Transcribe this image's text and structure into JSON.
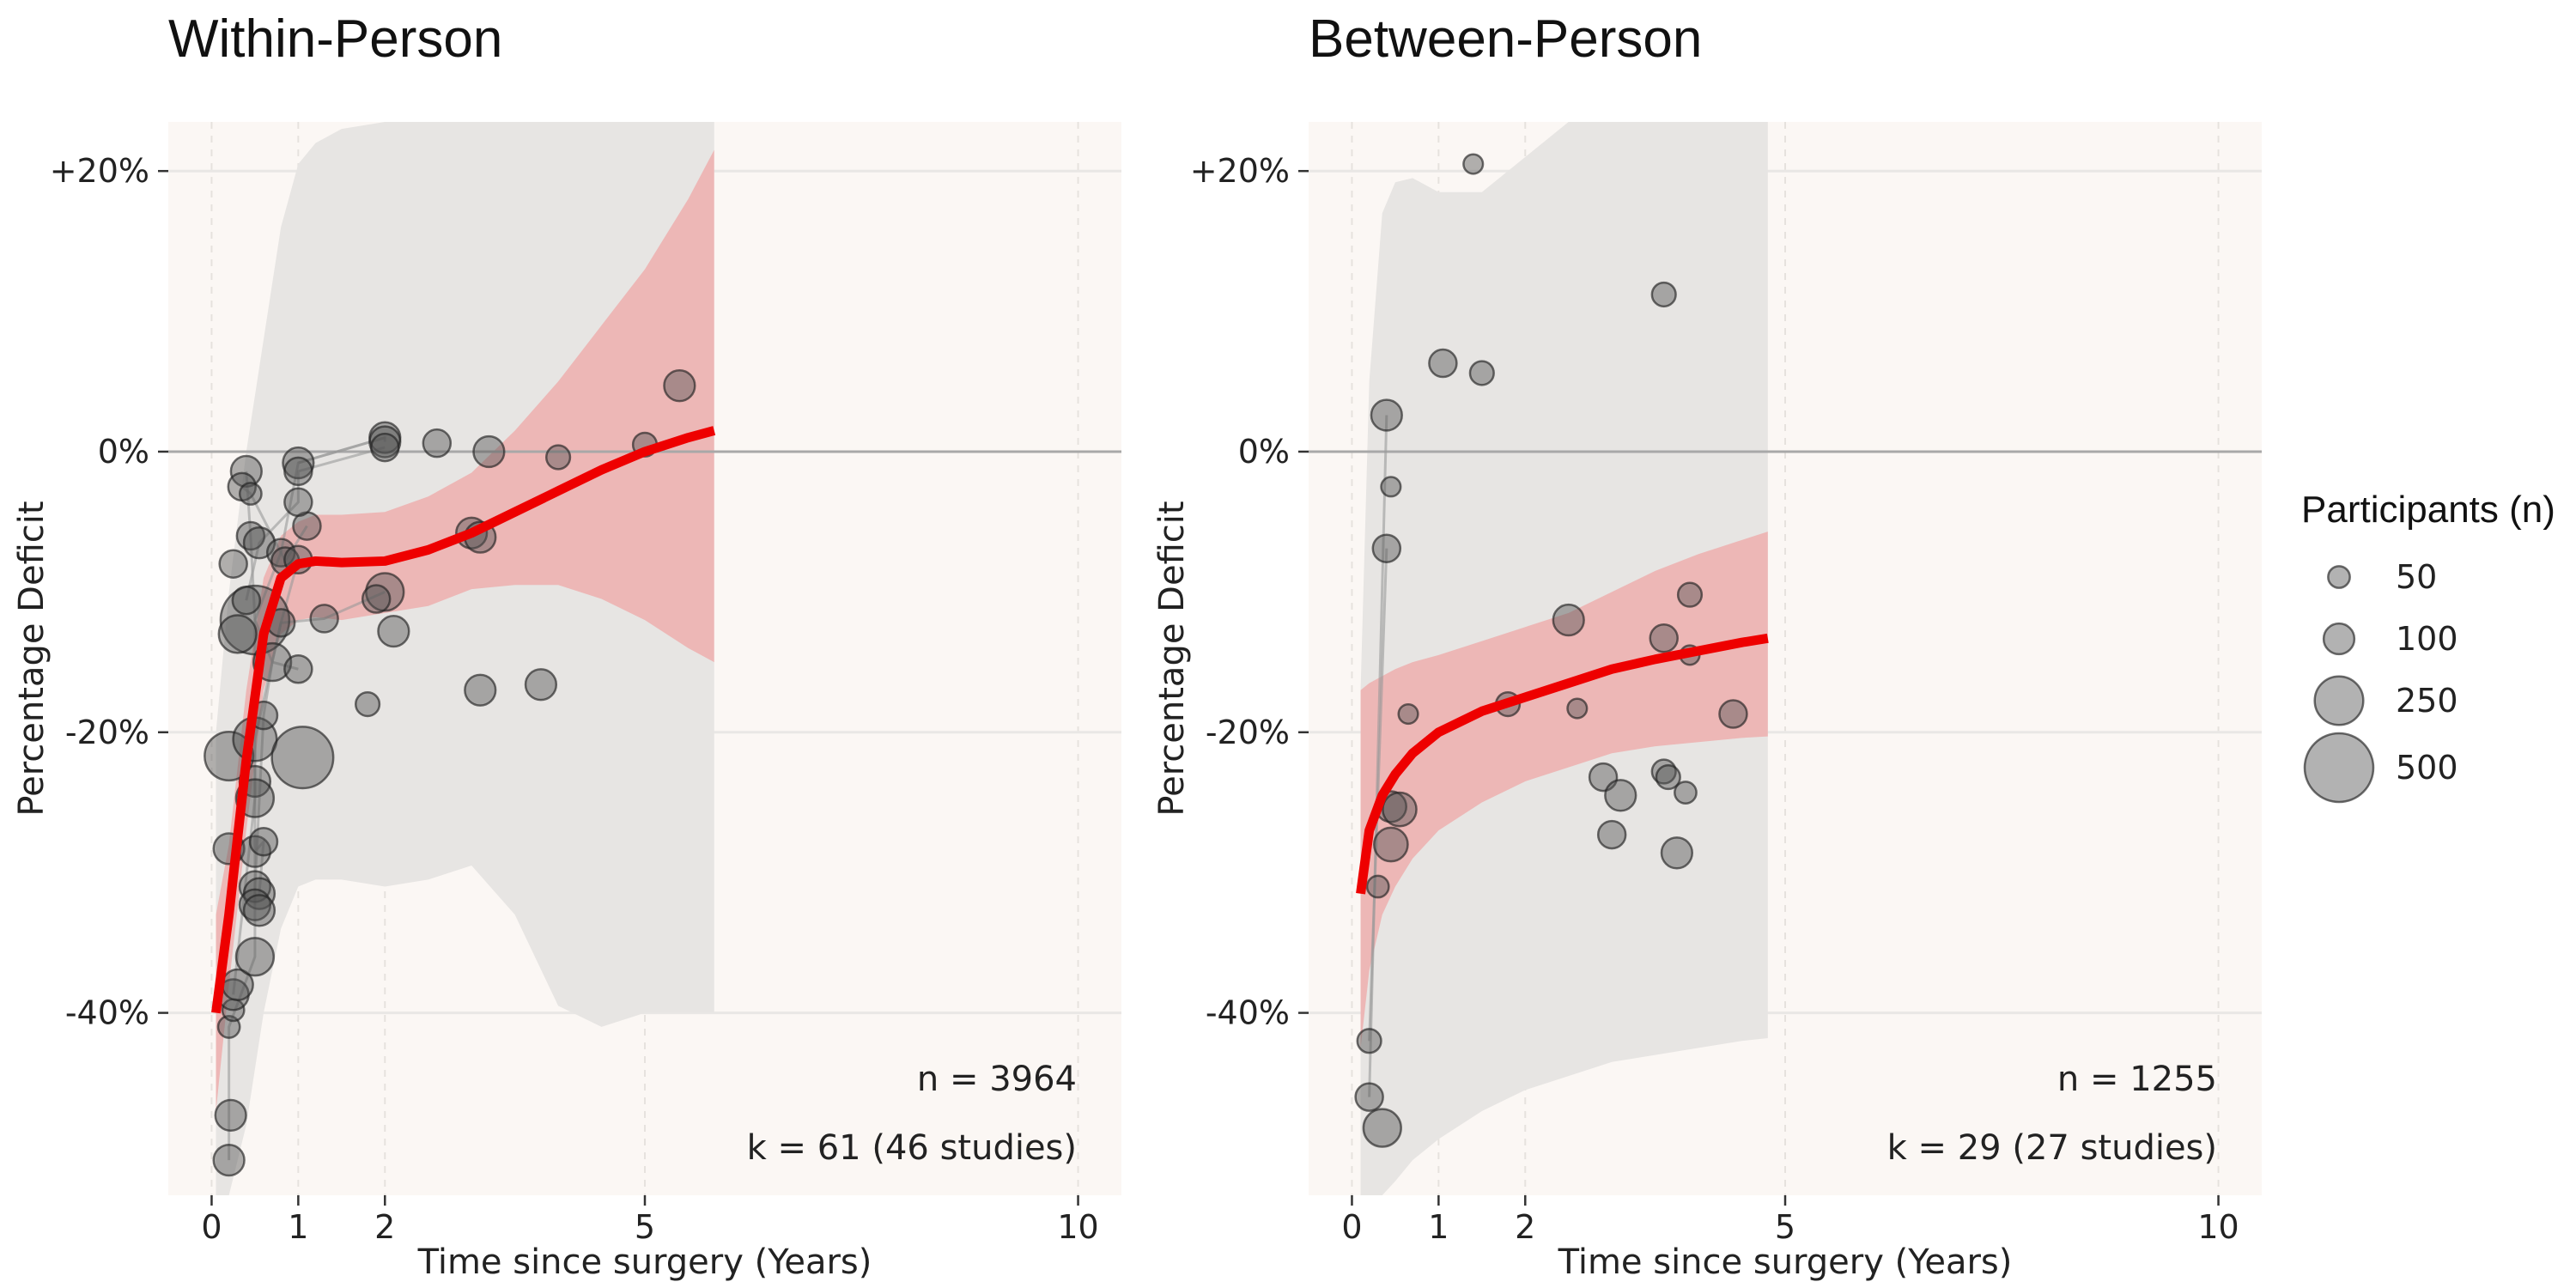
{
  "chart_data": [
    {
      "type": "scatter",
      "title": "Within-Person",
      "xlabel": "Time since surgery (Years)",
      "ylabel": "Percentage Deficit",
      "xlim": [
        -0.5,
        10.5
      ],
      "ylim": [
        -53,
        23.5
      ],
      "x_ticks": [
        0,
        1,
        2,
        5,
        10
      ],
      "y_ticks": [
        {
          "value": 20,
          "label": "+20%"
        },
        {
          "value": 0,
          "label": "0%"
        },
        {
          "value": -20,
          "label": "-20%"
        },
        {
          "value": -40,
          "label": "-40%"
        }
      ],
      "n_label": "n = 3964",
      "k_label": "k = 61 (46 studies)",
      "fit_line": {
        "x": [
          0.05,
          0.2,
          0.4,
          0.6,
          0.8,
          1.0,
          1.2,
          1.5,
          2.0,
          2.5,
          3.0,
          3.5,
          4.0,
          4.5,
          5.0,
          5.5,
          5.8
        ],
        "y": [
          -40,
          -33,
          -22,
          -13,
          -9,
          -8,
          -7.8,
          -7.9,
          -7.8,
          -7,
          -5.8,
          -4.3,
          -2.8,
          -1.3,
          0,
          1,
          1.5
        ]
      },
      "ci_band": {
        "x": [
          0.05,
          0.2,
          0.4,
          0.6,
          0.8,
          1.0,
          1.2,
          1.5,
          2.0,
          2.5,
          3.0,
          3.5,
          4.0,
          4.5,
          5.0,
          5.5,
          5.8
        ],
        "lower": [
          -47,
          -38,
          -27,
          -17,
          -13,
          -12,
          -11.8,
          -12,
          -11.5,
          -11,
          -9.8,
          -9.5,
          -9.5,
          -10.5,
          -12,
          -14,
          -15
        ],
        "upper": [
          -33,
          -28,
          -17,
          -9,
          -6,
          -5,
          -4.5,
          -4.5,
          -4.3,
          -3.2,
          -1.5,
          1.5,
          5,
          9,
          13,
          18,
          21.5
        ]
      },
      "pred_band": {
        "x": [
          0.05,
          0.2,
          0.4,
          0.6,
          0.8,
          1.0,
          1.2,
          1.5,
          2.0,
          2.5,
          3.0,
          3.5,
          4.0,
          4.5,
          5.0,
          5.5,
          5.8
        ],
        "lower": [
          -53,
          -53,
          -48,
          -40,
          -34,
          -31,
          -30.5,
          -30.5,
          -31,
          -30.5,
          -29.5,
          -33,
          -39.5,
          -41,
          -40,
          -40,
          -40
        ],
        "upper": [
          -20,
          -10,
          0,
          8,
          16,
          20.5,
          22,
          23,
          23.5,
          23.5,
          23.5,
          23.5,
          23.5,
          23.5,
          23.5,
          23.5,
          23.5
        ]
      },
      "points": [
        {
          "x": 0.2,
          "y": -50.5,
          "n": 100
        },
        {
          "x": 0.22,
          "y": -47.3,
          "n": 100
        },
        {
          "x": 0.2,
          "y": -41,
          "n": 50
        },
        {
          "x": 0.25,
          "y": -39.8,
          "n": 50
        },
        {
          "x": 0.25,
          "y": -38.7,
          "n": 100
        },
        {
          "x": 0.3,
          "y": -38,
          "n": 100
        },
        {
          "x": 0.5,
          "y": -36,
          "n": 150
        },
        {
          "x": 0.2,
          "y": -28.3,
          "n": 100
        },
        {
          "x": 0.5,
          "y": -28.5,
          "n": 100
        },
        {
          "x": 0.6,
          "y": -27.8,
          "n": 80
        },
        {
          "x": 0.5,
          "y": -31,
          "n": 100
        },
        {
          "x": 0.55,
          "y": -31.5,
          "n": 100
        },
        {
          "x": 0.5,
          "y": -32.3,
          "n": 100
        },
        {
          "x": 0.55,
          "y": -32.7,
          "n": 100
        },
        {
          "x": 0.2,
          "y": -21.7,
          "n": 250
        },
        {
          "x": 0.5,
          "y": -20.5,
          "n": 200
        },
        {
          "x": 0.5,
          "y": -23.5,
          "n": 100
        },
        {
          "x": 0.5,
          "y": -24.7,
          "n": 150
        },
        {
          "x": 0.6,
          "y": -18.8,
          "n": 80
        },
        {
          "x": 1.05,
          "y": -21.8,
          "n": 400
        },
        {
          "x": 0.5,
          "y": -12,
          "n": 500
        },
        {
          "x": 0.3,
          "y": -13,
          "n": 150
        },
        {
          "x": 0.4,
          "y": -10.6,
          "n": 80
        },
        {
          "x": 0.7,
          "y": -15,
          "n": 150
        },
        {
          "x": 0.8,
          "y": -12.2,
          "n": 80
        },
        {
          "x": 1.0,
          "y": -15.5,
          "n": 80
        },
        {
          "x": 1.3,
          "y": -11.9,
          "n": 80
        },
        {
          "x": 0.25,
          "y": -8,
          "n": 80
        },
        {
          "x": 0.45,
          "y": -6,
          "n": 80
        },
        {
          "x": 0.55,
          "y": -6.5,
          "n": 100
        },
        {
          "x": 0.8,
          "y": -7.2,
          "n": 80
        },
        {
          "x": 0.85,
          "y": -7.8,
          "n": 80
        },
        {
          "x": 1.0,
          "y": -7.7,
          "n": 80
        },
        {
          "x": 1.1,
          "y": -5.3,
          "n": 80
        },
        {
          "x": 0.4,
          "y": -1.4,
          "n": 100
        },
        {
          "x": 0.35,
          "y": -2.5,
          "n": 80
        },
        {
          "x": 0.45,
          "y": -3,
          "n": 50
        },
        {
          "x": 1.0,
          "y": -0.8,
          "n": 100
        },
        {
          "x": 1.0,
          "y": -1.4,
          "n": 80
        },
        {
          "x": 1.0,
          "y": -3.6,
          "n": 80
        },
        {
          "x": 2.0,
          "y": 1,
          "n": 100
        },
        {
          "x": 2.0,
          "y": 0.7,
          "n": 100
        },
        {
          "x": 2.0,
          "y": 0.3,
          "n": 80
        },
        {
          "x": 2.6,
          "y": 0.6,
          "n": 80
        },
        {
          "x": 3.2,
          "y": 0,
          "n": 100
        },
        {
          "x": 4.0,
          "y": -0.4,
          "n": 60
        },
        {
          "x": 5.0,
          "y": 0.5,
          "n": 60
        },
        {
          "x": 5.4,
          "y": 4.7,
          "n": 100
        },
        {
          "x": 3.0,
          "y": -5.8,
          "n": 100
        },
        {
          "x": 3.1,
          "y": -6.1,
          "n": 100
        },
        {
          "x": 2.0,
          "y": -10,
          "n": 150
        },
        {
          "x": 1.9,
          "y": -10.5,
          "n": 80
        },
        {
          "x": 2.1,
          "y": -12.8,
          "n": 100
        },
        {
          "x": 1.8,
          "y": -18,
          "n": 60
        },
        {
          "x": 3.1,
          "y": -17,
          "n": 100
        },
        {
          "x": 3.8,
          "y": -16.6,
          "n": 100
        }
      ],
      "connections": [
        [
          [
            0.2,
            -50.5
          ],
          [
            0.2,
            -41
          ],
          [
            0.5,
            -36
          ],
          [
            0.5,
            -31
          ],
          [
            0.6,
            -18.8
          ],
          [
            0.7,
            -15
          ],
          [
            0.8,
            -12.2
          ],
          [
            1.0,
            -7.7
          ]
        ],
        [
          [
            0.25,
            -38.7
          ],
          [
            0.5,
            -24.7
          ],
          [
            0.5,
            -20.5
          ],
          [
            0.8,
            -12.2
          ],
          [
            1.3,
            -11.9
          ],
          [
            2.0,
            -10
          ]
        ],
        [
          [
            0.5,
            -32.3
          ],
          [
            0.5,
            -12
          ],
          [
            0.8,
            -7.2
          ],
          [
            1.0,
            -0.8
          ],
          [
            2.0,
            1
          ],
          [
            2.0,
            0.7
          ]
        ],
        [
          [
            0.4,
            -10.6
          ],
          [
            0.55,
            -6.5
          ],
          [
            1.0,
            -3.6
          ],
          [
            1.0,
            -1.4
          ],
          [
            2.0,
            0.3
          ]
        ],
        [
          [
            0.4,
            -1.4
          ],
          [
            0.45,
            -6
          ],
          [
            0.5,
            -12
          ],
          [
            0.7,
            -15
          ],
          [
            1.0,
            -15.5
          ]
        ],
        [
          [
            0.35,
            -2.5
          ],
          [
            0.45,
            -3
          ],
          [
            0.85,
            -7.8
          ],
          [
            1.1,
            -5.3
          ]
        ],
        [
          [
            0.5,
            -28.5
          ],
          [
            0.6,
            -27.8
          ],
          [
            0.55,
            -31.5
          ]
        ],
        [
          [
            1.0,
            -0.8
          ],
          [
            2.0,
            1
          ]
        ]
      ]
    },
    {
      "type": "scatter",
      "title": "Between-Person",
      "xlabel": "Time since surgery (Years)",
      "ylabel": "Percentage Deficit",
      "xlim": [
        -0.5,
        10.5
      ],
      "ylim": [
        -53,
        23.5
      ],
      "x_ticks": [
        0,
        1,
        2,
        5,
        10
      ],
      "y_ticks": [
        {
          "value": 20,
          "label": "+20%"
        },
        {
          "value": 0,
          "label": "0%"
        },
        {
          "value": -20,
          "label": "-20%"
        },
        {
          "value": -40,
          "label": "-40%"
        }
      ],
      "n_label": "n = 1255",
      "k_label": "k = 29 (27 studies)",
      "fit_line": {
        "x": [
          0.1,
          0.2,
          0.35,
          0.5,
          0.7,
          1.0,
          1.5,
          2.0,
          2.5,
          3.0,
          3.5,
          4.0,
          4.5,
          4.8
        ],
        "y": [
          -31.5,
          -27,
          -24.5,
          -23,
          -21.5,
          -20,
          -18.5,
          -17.5,
          -16.5,
          -15.5,
          -14.8,
          -14.2,
          -13.6,
          -13.3
        ]
      },
      "ci_band": {
        "x": [
          0.1,
          0.2,
          0.35,
          0.5,
          0.7,
          1.0,
          1.5,
          2.0,
          2.5,
          3.0,
          3.5,
          4.0,
          4.5,
          4.8
        ],
        "lower": [
          -42.5,
          -37,
          -33,
          -31,
          -29,
          -27,
          -25,
          -23.5,
          -22.5,
          -21.5,
          -21,
          -20.7,
          -20.4,
          -20.3
        ],
        "upper": [
          -17,
          -16.5,
          -16,
          -15.5,
          -15,
          -14.5,
          -13.5,
          -12.5,
          -11.5,
          -10,
          -8.5,
          -7.3,
          -6.3,
          -5.7
        ]
      },
      "pred_band": {
        "x": [
          0.1,
          0.2,
          0.35,
          0.5,
          0.7,
          1.0,
          1.5,
          2.0,
          2.5,
          3.0,
          3.5,
          4.0,
          4.5,
          4.8
        ],
        "lower": [
          -53,
          -53,
          -53,
          -52,
          -50.5,
          -49,
          -47,
          -45.5,
          -44.5,
          -43.5,
          -43,
          -42.5,
          -42,
          -41.8
        ],
        "upper": [
          -17,
          5,
          17,
          19.2,
          19.5,
          18.5,
          18.5,
          21,
          23.5,
          23.5,
          23.5,
          23.5,
          23.5,
          23.5
        ]
      },
      "points": [
        {
          "x": 0.35,
          "y": -48.2,
          "n": 150
        },
        {
          "x": 0.2,
          "y": -46,
          "n": 80
        },
        {
          "x": 0.2,
          "y": -42,
          "n": 60
        },
        {
          "x": 0.3,
          "y": -31,
          "n": 50
        },
        {
          "x": 0.45,
          "y": -28,
          "n": 120
        },
        {
          "x": 0.45,
          "y": -25.3,
          "n": 100
        },
        {
          "x": 0.55,
          "y": -25.5,
          "n": 120
        },
        {
          "x": 0.65,
          "y": -18.7,
          "n": 40
        },
        {
          "x": 1.8,
          "y": -18,
          "n": 60
        },
        {
          "x": 2.6,
          "y": -18.3,
          "n": 40
        },
        {
          "x": 2.5,
          "y": -12,
          "n": 100
        },
        {
          "x": 2.9,
          "y": -23.2,
          "n": 80
        },
        {
          "x": 3.1,
          "y": -24.5,
          "n": 100
        },
        {
          "x": 3.0,
          "y": -27.3,
          "n": 80
        },
        {
          "x": 3.6,
          "y": -22.8,
          "n": 60
        },
        {
          "x": 3.65,
          "y": -23.2,
          "n": 60
        },
        {
          "x": 3.85,
          "y": -24.3,
          "n": 50
        },
        {
          "x": 3.75,
          "y": -28.6,
          "n": 100
        },
        {
          "x": 3.6,
          "y": -13.3,
          "n": 80
        },
        {
          "x": 3.9,
          "y": -10.2,
          "n": 60
        },
        {
          "x": 3.9,
          "y": -14.5,
          "n": 40
        },
        {
          "x": 4.4,
          "y": -18.7,
          "n": 80
        },
        {
          "x": 0.4,
          "y": 2.6,
          "n": 100
        },
        {
          "x": 0.45,
          "y": -2.5,
          "n": 40
        },
        {
          "x": 0.4,
          "y": -6.9,
          "n": 80
        },
        {
          "x": 1.05,
          "y": 6.3,
          "n": 80
        },
        {
          "x": 1.5,
          "y": 5.6,
          "n": 60
        },
        {
          "x": 1.4,
          "y": 20.5,
          "n": 40
        },
        {
          "x": 3.6,
          "y": 11.2,
          "n": 60
        }
      ],
      "connections": [
        [
          [
            0.2,
            -46
          ],
          [
            0.4,
            2.6
          ]
        ],
        [
          [
            0.2,
            -42
          ],
          [
            0.4,
            -6.9
          ]
        ]
      ]
    }
  ],
  "legend": {
    "title": "Participants (n)",
    "entries": [
      {
        "label": "50",
        "n": 50
      },
      {
        "label": "100",
        "n": 100
      },
      {
        "label": "250",
        "n": 250
      },
      {
        "label": "500",
        "n": 500
      }
    ]
  },
  "colors": {
    "panel_bg": "#fbf7f4",
    "pred_band": "#e7e5e3",
    "ci_band": "#f09e9e",
    "fit_line": "#ee0000",
    "point_fill": "#555555",
    "point_stroke": "#222222",
    "zero_line": "#a8a8a8",
    "grid_major": "#e9e7e5",
    "grid_minor": "#e6e2de"
  }
}
